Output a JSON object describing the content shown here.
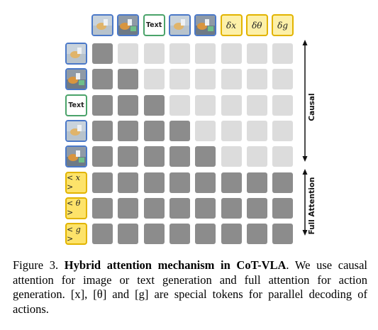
{
  "columns": [
    {
      "kind": "image",
      "variant": "a"
    },
    {
      "kind": "image",
      "variant": "b"
    },
    {
      "kind": "text",
      "label": "Text"
    },
    {
      "kind": "image",
      "variant": "a"
    },
    {
      "kind": "image",
      "variant": "b"
    },
    {
      "kind": "action",
      "label": "δx"
    },
    {
      "kind": "action",
      "label": "δθ"
    },
    {
      "kind": "action",
      "label": "δg"
    }
  ],
  "rows": [
    {
      "kind": "image",
      "variant": "a"
    },
    {
      "kind": "image",
      "variant": "b"
    },
    {
      "kind": "text",
      "label": "Text"
    },
    {
      "kind": "image",
      "variant": "a"
    },
    {
      "kind": "image",
      "variant": "b"
    },
    {
      "kind": "action",
      "label": "< x >"
    },
    {
      "kind": "action",
      "label": "< θ >"
    },
    {
      "kind": "action",
      "label": "< g >"
    }
  ],
  "attention_mask": [
    [
      1,
      0,
      0,
      0,
      0,
      0,
      0,
      0
    ],
    [
      1,
      1,
      0,
      0,
      0,
      0,
      0,
      0
    ],
    [
      1,
      1,
      1,
      0,
      0,
      0,
      0,
      0
    ],
    [
      1,
      1,
      1,
      1,
      0,
      0,
      0,
      0
    ],
    [
      1,
      1,
      1,
      1,
      1,
      0,
      0,
      0
    ],
    [
      1,
      1,
      1,
      1,
      1,
      1,
      1,
      1
    ],
    [
      1,
      1,
      1,
      1,
      1,
      1,
      1,
      1
    ],
    [
      1,
      1,
      1,
      1,
      1,
      1,
      1,
      1
    ]
  ],
  "labels": {
    "causal": "Causal",
    "full": "Full Attention"
  },
  "caption": {
    "prefix": "Figure 3. ",
    "bold": "Hybrid attention mechanism in CoT-VLA",
    "rest": ". We use causal attention for image or text generation and full attention for action generation. [x], [θ] and [g] are special tokens for parallel decoding of actions."
  },
  "colors": {
    "attend": "#8c8c8c",
    "masked": "#dcdcdc",
    "image_border": "#4a78c8",
    "text_border": "#4aa36a",
    "action_border": "#e2b400"
  }
}
